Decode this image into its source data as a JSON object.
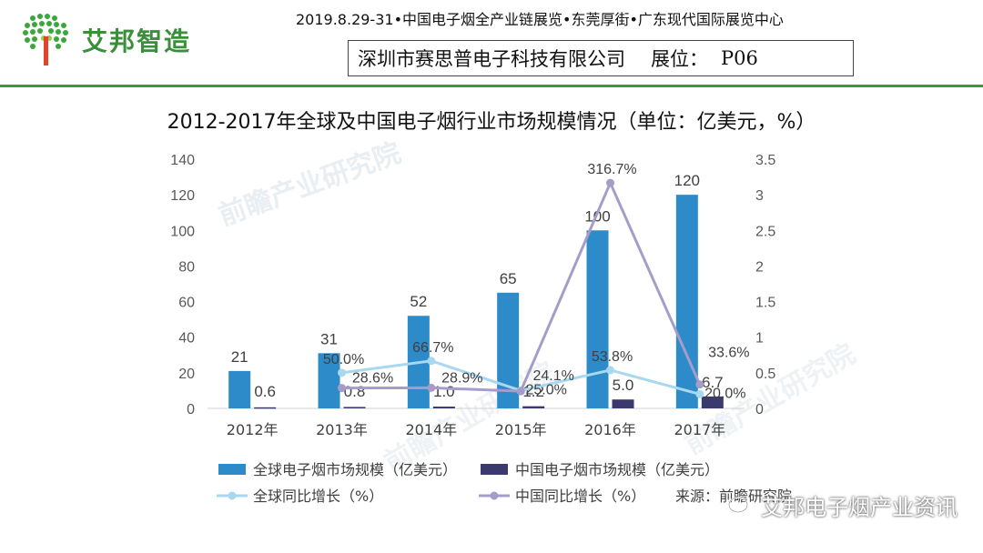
{
  "header": {
    "logo_text": "艾邦智造",
    "event_line": "2019.8.29-31•中国电子烟全产业链展览•东莞厚街•广东现代国际展览中心",
    "company": "深圳市赛思普电子科技有限公司",
    "booth_label": "展位：",
    "booth_code": "P06",
    "accent_color": "#2e9e3e"
  },
  "chart_data": {
    "type": "bar",
    "title": "2012-2017年全球及中国电子烟行业市场规模情况（单位：亿美元，%）",
    "categories": [
      "2012年",
      "2013年",
      "2014年",
      "2015年",
      "2016年",
      "2017年"
    ],
    "y_left": {
      "min": 0,
      "max": 140,
      "ticks": [
        "0",
        "20",
        "40",
        "60",
        "80",
        "100",
        "120",
        "140"
      ]
    },
    "y_right": {
      "min": 0,
      "max": 3.5,
      "ticks": [
        "0",
        "0.5",
        "1",
        "1.5",
        "2",
        "2.5",
        "3",
        "3.5"
      ]
    },
    "bar_series": [
      {
        "name": "全球电子烟市场规模（亿美元）",
        "color": "#2e8bc9",
        "values": [
          21,
          31,
          52,
          65,
          100,
          120
        ],
        "labels": [
          "21",
          "31",
          "52",
          "65",
          "100",
          "120"
        ]
      },
      {
        "name": "中国电子烟市场规模（亿美元）",
        "color": "#3b3a6e",
        "values": [
          0.6,
          0.8,
          1.0,
          1.2,
          5.0,
          6.7
        ],
        "labels": [
          "0.6",
          "0.8",
          "1.0",
          "1.2",
          "5.0",
          "6.7"
        ]
      }
    ],
    "line_series": [
      {
        "name": "全球同比增长（%）",
        "color": "#a8d8ef",
        "values": [
          null,
          0.5,
          0.667,
          0.25,
          0.538,
          0.2
        ],
        "labels": [
          "",
          "50.0%",
          "66.7%",
          "25.0%",
          "53.8%",
          "20.0%"
        ]
      },
      {
        "name": "中国同比增长（%）",
        "color": "#a59dc9",
        "values": [
          null,
          0.286,
          0.289,
          0.241,
          3.167,
          0.336
        ],
        "labels": [
          "",
          "28.6%",
          "28.9%",
          "24.1%",
          "316.7%",
          "33.6%"
        ]
      }
    ],
    "source": "来源：前瞻研究院",
    "watermark": "前瞻产业研究院",
    "legend_position": "bottom",
    "grid": false
  },
  "footer": {
    "wechat_watermark": "艾邦电子烟产业资讯"
  }
}
